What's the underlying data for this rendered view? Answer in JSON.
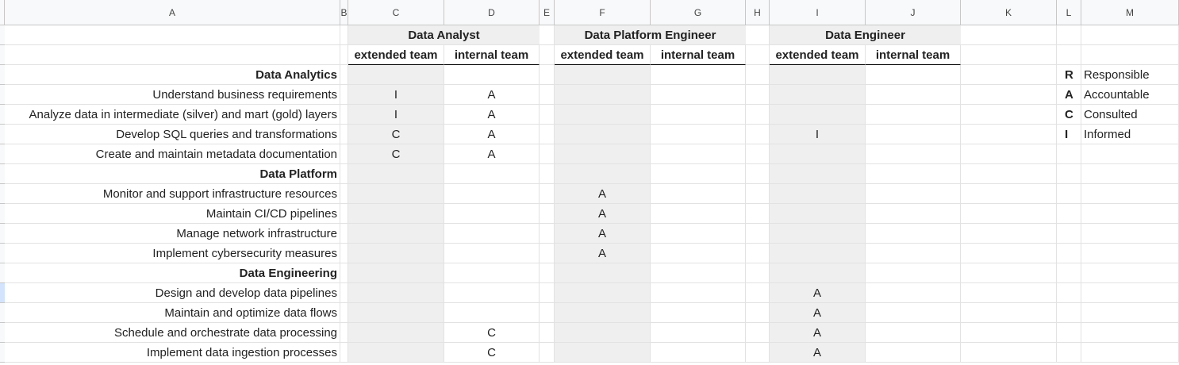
{
  "columns": [
    "A",
    "B",
    "C",
    "D",
    "E",
    "F",
    "G",
    "H",
    "I",
    "J",
    "K",
    "L",
    "M"
  ],
  "groups": [
    {
      "col": "C",
      "span": 2,
      "label": "Data Analyst"
    },
    {
      "col": "F",
      "span": 2,
      "label": "Data Platform Engineer"
    },
    {
      "col": "I",
      "span": 2,
      "label": "Data Engineer"
    }
  ],
  "subheaders": {
    "C": "extended team",
    "D": "internal team",
    "F": "extended team",
    "G": "internal team",
    "I": "extended team",
    "J": "internal team"
  },
  "legend": [
    {
      "key": "R",
      "label": "Responsible"
    },
    {
      "key": "A",
      "label": "Accountable"
    },
    {
      "key": "C",
      "label": "Consulted"
    },
    {
      "key": "I",
      "label": "Informed"
    }
  ],
  "rows": [
    {
      "label": "Data Analytics",
      "section": true
    },
    {
      "label": "Understand business requirements",
      "C": "I",
      "D": "A"
    },
    {
      "label": "Analyze data in intermediate (silver) and mart (gold) layers",
      "C": "I",
      "D": "A"
    },
    {
      "label": "Develop SQL queries and transformations",
      "C": "C",
      "D": "A",
      "I": "I"
    },
    {
      "label": "Create and maintain metadata documentation",
      "C": "C",
      "D": "A"
    },
    {
      "label": "Data Platform",
      "section": true
    },
    {
      "label": "Monitor and support infrastructure resources",
      "F": "A"
    },
    {
      "label": "Maintain CI/CD pipelines",
      "F": "A"
    },
    {
      "label": "Manage network infrastructure",
      "F": "A"
    },
    {
      "label": "Implement cybersecurity measures",
      "F": "A"
    },
    {
      "label": "Data Engineering",
      "section": true
    },
    {
      "label": "Design and develop data pipelines",
      "I": "A"
    },
    {
      "label": "Maintain and optimize data flows",
      "I": "A"
    },
    {
      "label": "Schedule and orchestrate data processing",
      "D": "C",
      "I": "A"
    },
    {
      "label": "Implement data ingestion processes",
      "D": "C",
      "I": "A"
    }
  ]
}
